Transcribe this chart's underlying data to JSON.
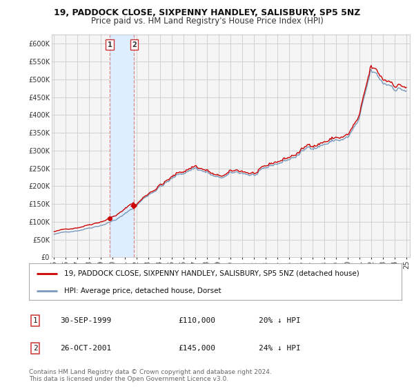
{
  "title": "19, PADDOCK CLOSE, SIXPENNY HANDLEY, SALISBURY, SP5 5NZ",
  "subtitle": "Price paid vs. HM Land Registry's House Price Index (HPI)",
  "ylim": [
    0,
    625000
  ],
  "yticks": [
    0,
    50000,
    100000,
    150000,
    200000,
    250000,
    300000,
    350000,
    400000,
    450000,
    500000,
    550000,
    600000
  ],
  "background_color": "#ffffff",
  "plot_bg_color": "#f5f5f5",
  "grid_color": "#cccccc",
  "line1_color": "#cc0000",
  "line2_color": "#7799bb",
  "vline_color": "#dd8888",
  "span_color": "#ddeeff",
  "purchase1_date": 1999.75,
  "purchase1_price": 110000,
  "purchase2_date": 2001.82,
  "purchase2_price": 145000,
  "legend1_label": "19, PADDOCK CLOSE, SIXPENNY HANDLEY, SALISBURY, SP5 5NZ (detached house)",
  "legend2_label": "HPI: Average price, detached house, Dorset",
  "footnote": "Contains HM Land Registry data © Crown copyright and database right 2024.\nThis data is licensed under the Open Government Licence v3.0.",
  "title_fontsize": 9,
  "subtitle_fontsize": 8.5
}
